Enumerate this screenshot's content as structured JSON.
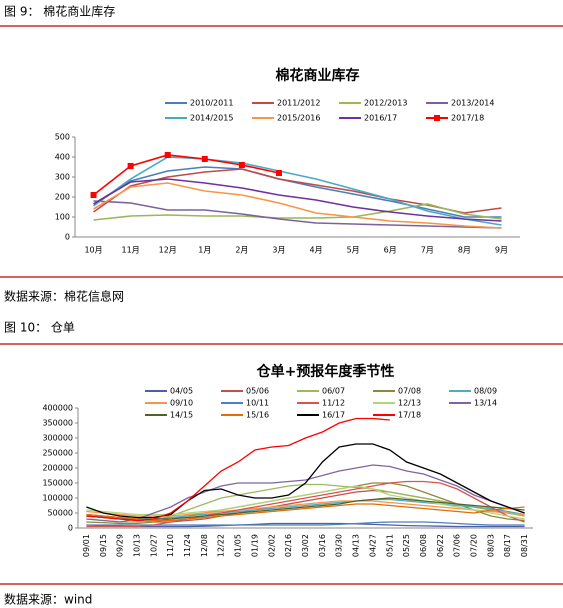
{
  "caption1": "图 9：  棉花商业库存",
  "source1": "数据来源：棉花信息网",
  "caption2": "图 10： 仓单",
  "source2": "数据来源：wind",
  "chart_data": [
    {
      "type": "line",
      "title": "棉花商业库存",
      "categories": [
        "10月",
        "11月",
        "12月",
        "1月",
        "2月",
        "3月",
        "4月",
        "5月",
        "6月",
        "7月",
        "8月",
        "9月"
      ],
      "ylim": [
        0,
        500
      ],
      "yticks": [
        0,
        100,
        200,
        300,
        400,
        500
      ],
      "series": [
        {
          "name": "2010/2011",
          "color": "#4a7ebb",
          "values": [
            165,
            280,
            330,
            350,
            340,
            290,
            250,
            215,
            180,
            140,
            100,
            100
          ]
        },
        {
          "name": "2011/2012",
          "color": "#be4b48",
          "values": [
            125,
            255,
            300,
            325,
            340,
            290,
            260,
            230,
            190,
            160,
            120,
            145
          ]
        },
        {
          "name": "2012/2013",
          "color": "#98b954",
          "values": [
            85,
            105,
            110,
            105,
            105,
            95,
            95,
            100,
            130,
            165,
            115,
            90
          ]
        },
        {
          "name": "2013/2014",
          "color": "#7d60a0",
          "values": [
            180,
            170,
            135,
            135,
            115,
            90,
            70,
            65,
            60,
            55,
            50,
            45
          ]
        },
        {
          "name": "2014/2015",
          "color": "#46aac5",
          "values": [
            155,
            290,
            400,
            390,
            370,
            330,
            290,
            240,
            190,
            130,
            90,
            60
          ]
        },
        {
          "name": "2015/2016",
          "color": "#f79646",
          "values": [
            140,
            250,
            270,
            230,
            210,
            170,
            120,
            100,
            80,
            70,
            55,
            45
          ]
        },
        {
          "name": "2016/17",
          "color": "#7030a0",
          "values": [
            165,
            275,
            290,
            270,
            245,
            210,
            185,
            150,
            125,
            105,
            90,
            80
          ]
        },
        {
          "name": "2017/18",
          "color": "#ff0000",
          "marker": "square",
          "values": [
            210,
            355,
            410,
            390,
            360,
            320,
            null,
            null,
            null,
            null,
            null,
            null
          ]
        }
      ]
    },
    {
      "type": "line",
      "title": "仓单+预报年度季节性",
      "categories": [
        "09/01",
        "09/15",
        "09/29",
        "10/13",
        "10/27",
        "11/10",
        "11/24",
        "12/08",
        "12/22",
        "01/05",
        "01/19",
        "02/02",
        "02/16",
        "03/02",
        "03/16",
        "03/30",
        "04/13",
        "04/27",
        "05/11",
        "05/25",
        "06/08",
        "06/22",
        "07/06",
        "07/20",
        "08/03",
        "08/17",
        "08/31"
      ],
      "ylim": [
        0,
        400000
      ],
      "yticks": [
        0,
        50000,
        100000,
        150000,
        200000,
        250000,
        300000,
        350000,
        400000
      ],
      "series": [
        {
          "name": "04/05",
          "color": "#4f5fa5",
          "values": [
            10000,
            8000,
            6000,
            5000,
            5000,
            5000,
            5000,
            6000,
            8000,
            10000,
            12000,
            15000,
            15000,
            15000,
            15000,
            15000,
            14000,
            12000,
            10000,
            8000,
            7000,
            6000,
            5000,
            5000,
            5000,
            5000,
            5000
          ]
        },
        {
          "name": "05/06",
          "color": "#c0504d",
          "values": [
            40000,
            35000,
            30000,
            25000,
            20000,
            20000,
            25000,
            30000,
            40000,
            50000,
            60000,
            70000,
            80000,
            90000,
            100000,
            110000,
            120000,
            125000,
            120000,
            110000,
            100000,
            90000,
            80000,
            70000,
            60000,
            50000,
            40000
          ]
        },
        {
          "name": "06/07",
          "color": "#9bbb59",
          "values": [
            30000,
            25000,
            20000,
            20000,
            25000,
            40000,
            60000,
            80000,
            100000,
            110000,
            120000,
            130000,
            140000,
            145000,
            145000,
            140000,
            135000,
            130000,
            120000,
            110000,
            100000,
            90000,
            80000,
            70000,
            60000,
            50000,
            40000
          ]
        },
        {
          "name": "07/08",
          "color": "#8a8a3a",
          "values": [
            20000,
            18000,
            15000,
            15000,
            20000,
            30000,
            40000,
            50000,
            60000,
            70000,
            80000,
            90000,
            100000,
            110000,
            120000,
            130000,
            140000,
            150000,
            150000,
            140000,
            120000,
            100000,
            80000,
            60000,
            40000,
            30000,
            25000
          ]
        },
        {
          "name": "08/09",
          "color": "#4bacc6",
          "values": [
            45000,
            40000,
            35000,
            30000,
            30000,
            35000,
            40000,
            45000,
            50000,
            55000,
            60000,
            65000,
            70000,
            75000,
            80000,
            85000,
            90000,
            95000,
            95000,
            90000,
            85000,
            80000,
            75000,
            70000,
            65000,
            55000,
            45000
          ]
        },
        {
          "name": "09/10",
          "color": "#f79646",
          "values": [
            55000,
            50000,
            45000,
            40000,
            40000,
            40000,
            45000,
            50000,
            55000,
            60000,
            65000,
            70000,
            75000,
            80000,
            85000,
            90000,
            90000,
            90000,
            85000,
            80000,
            75000,
            70000,
            65000,
            60000,
            55000,
            50000,
            45000
          ]
        },
        {
          "name": "10/11",
          "color": "#4f81bd",
          "values": [
            10000,
            10000,
            10000,
            10000,
            10000,
            10000,
            10000,
            10000,
            10000,
            10000,
            10000,
            10000,
            10000,
            10000,
            10000,
            12000,
            15000,
            18000,
            20000,
            20000,
            20000,
            18000,
            15000,
            12000,
            10000,
            10000,
            10000
          ]
        },
        {
          "name": "11/12",
          "color": "#d9534f",
          "values": [
            5000,
            5000,
            5000,
            5000,
            10000,
            20000,
            30000,
            40000,
            50000,
            60000,
            70000,
            80000,
            90000,
            100000,
            110000,
            120000,
            130000,
            140000,
            150000,
            155000,
            155000,
            150000,
            130000,
            100000,
            70000,
            40000,
            20000
          ]
        },
        {
          "name": "12/13",
          "color": "#b4d47a",
          "values": [
            60000,
            55000,
            50000,
            45000,
            45000,
            45000,
            50000,
            55000,
            60000,
            70000,
            80000,
            90000,
            100000,
            110000,
            120000,
            130000,
            140000,
            130000,
            110000,
            100000,
            90000,
            80000,
            70000,
            60000,
            50000,
            40000,
            30000
          ]
        },
        {
          "name": "13/14",
          "color": "#8064a2",
          "values": [
            30000,
            25000,
            20000,
            30000,
            50000,
            70000,
            100000,
            120000,
            140000,
            150000,
            150000,
            150000,
            155000,
            160000,
            175000,
            190000,
            200000,
            210000,
            205000,
            190000,
            180000,
            160000,
            140000,
            110000,
            90000,
            70000,
            50000
          ]
        },
        {
          "name": "14/15",
          "color": "#4f6228",
          "values": [
            40000,
            35000,
            30000,
            30000,
            30000,
            30000,
            35000,
            40000,
            45000,
            50000,
            55000,
            60000,
            65000,
            70000,
            75000,
            80000,
            90000,
            95000,
            100000,
            95000,
            90000,
            85000,
            80000,
            75000,
            70000,
            65000,
            60000
          ]
        },
        {
          "name": "15/16",
          "color": "#e36c09",
          "values": [
            45000,
            40000,
            35000,
            30000,
            25000,
            25000,
            30000,
            35000,
            40000,
            45000,
            50000,
            55000,
            60000,
            65000,
            70000,
            75000,
            80000,
            80000,
            75000,
            70000,
            65000,
            60000,
            55000,
            50000,
            60000,
            65000,
            70000
          ]
        },
        {
          "name": "16/17",
          "color": "#000000",
          "values": [
            70000,
            50000,
            40000,
            35000,
            35000,
            45000,
            90000,
            125000,
            130000,
            110000,
            100000,
            100000,
            110000,
            150000,
            220000,
            270000,
            280000,
            280000,
            260000,
            220000,
            200000,
            180000,
            150000,
            120000,
            90000,
            70000,
            50000
          ]
        },
        {
          "name": "17/18",
          "color": "#ff0000",
          "values": [
            40000,
            35000,
            30000,
            25000,
            30000,
            50000,
            90000,
            140000,
            190000,
            220000,
            260000,
            270000,
            275000,
            300000,
            320000,
            350000,
            365000,
            365000,
            360000,
            null,
            null,
            null,
            null,
            null,
            null,
            null,
            null
          ]
        }
      ]
    }
  ]
}
